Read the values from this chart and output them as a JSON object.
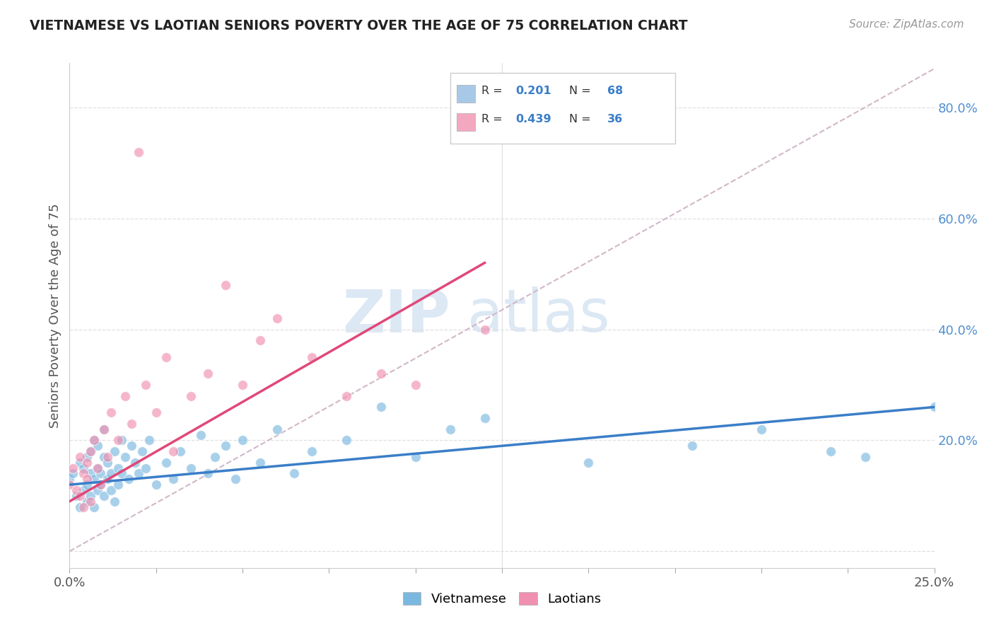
{
  "title": "VIETNAMESE VS LAOTIAN SENIORS POVERTY OVER THE AGE OF 75 CORRELATION CHART",
  "source_text": "Source: ZipAtlas.com",
  "ylabel": "Seniors Poverty Over the Age of 75",
  "xlim": [
    0.0,
    0.25
  ],
  "ylim": [
    -0.03,
    0.88
  ],
  "right_yticks": [
    0.0,
    0.2,
    0.4,
    0.6,
    0.8
  ],
  "right_yticklabels": [
    "",
    "20.0%",
    "40.0%",
    "60.0%",
    "80.0%"
  ],
  "legend_entries": [
    {
      "label": "Vietnamese",
      "color": "#a8c8e8",
      "R": "0.201",
      "N": "68"
    },
    {
      "label": "Laotians",
      "color": "#f4a8c0",
      "R": "0.439",
      "N": "36"
    }
  ],
  "viet_scatter_x": [
    0.0,
    0.001,
    0.002,
    0.003,
    0.003,
    0.004,
    0.004,
    0.005,
    0.005,
    0.005,
    0.006,
    0.006,
    0.006,
    0.007,
    0.007,
    0.007,
    0.008,
    0.008,
    0.008,
    0.009,
    0.009,
    0.01,
    0.01,
    0.01,
    0.011,
    0.011,
    0.012,
    0.012,
    0.013,
    0.013,
    0.014,
    0.014,
    0.015,
    0.015,
    0.016,
    0.017,
    0.018,
    0.019,
    0.02,
    0.021,
    0.022,
    0.023,
    0.025,
    0.028,
    0.03,
    0.032,
    0.035,
    0.038,
    0.04,
    0.042,
    0.045,
    0.048,
    0.05,
    0.055,
    0.06,
    0.065,
    0.07,
    0.08,
    0.09,
    0.1,
    0.11,
    0.12,
    0.15,
    0.18,
    0.2,
    0.22,
    0.23,
    0.25
  ],
  "viet_scatter_y": [
    0.13,
    0.14,
    0.1,
    0.16,
    0.08,
    0.15,
    0.11,
    0.17,
    0.12,
    0.09,
    0.18,
    0.14,
    0.1,
    0.2,
    0.13,
    0.08,
    0.15,
    0.11,
    0.19,
    0.14,
    0.12,
    0.17,
    0.1,
    0.22,
    0.13,
    0.16,
    0.14,
    0.11,
    0.18,
    0.09,
    0.15,
    0.12,
    0.2,
    0.14,
    0.17,
    0.13,
    0.19,
    0.16,
    0.14,
    0.18,
    0.15,
    0.2,
    0.12,
    0.16,
    0.13,
    0.18,
    0.15,
    0.21,
    0.14,
    0.17,
    0.19,
    0.13,
    0.2,
    0.16,
    0.22,
    0.14,
    0.18,
    0.2,
    0.26,
    0.17,
    0.22,
    0.24,
    0.16,
    0.19,
    0.22,
    0.18,
    0.17,
    0.26
  ],
  "lao_scatter_x": [
    0.0,
    0.001,
    0.002,
    0.003,
    0.003,
    0.004,
    0.004,
    0.005,
    0.005,
    0.006,
    0.006,
    0.007,
    0.008,
    0.009,
    0.01,
    0.011,
    0.012,
    0.014,
    0.016,
    0.018,
    0.02,
    0.022,
    0.025,
    0.028,
    0.03,
    0.035,
    0.04,
    0.045,
    0.05,
    0.055,
    0.06,
    0.07,
    0.08,
    0.09,
    0.1,
    0.12
  ],
  "lao_scatter_y": [
    0.12,
    0.15,
    0.11,
    0.17,
    0.1,
    0.14,
    0.08,
    0.16,
    0.13,
    0.18,
    0.09,
    0.2,
    0.15,
    0.12,
    0.22,
    0.17,
    0.25,
    0.2,
    0.28,
    0.23,
    0.72,
    0.3,
    0.25,
    0.35,
    0.18,
    0.28,
    0.32,
    0.48,
    0.3,
    0.38,
    0.42,
    0.35,
    0.28,
    0.32,
    0.3,
    0.4
  ],
  "viet_trend_x": [
    0.0,
    0.25
  ],
  "viet_trend_y": [
    0.12,
    0.26
  ],
  "lao_trend_x": [
    0.0,
    0.12
  ],
  "lao_trend_y": [
    0.09,
    0.52
  ],
  "diag_line_x": [
    0.0,
    0.25
  ],
  "diag_line_y": [
    0.0,
    0.87
  ],
  "watermark_zip": "ZIP",
  "watermark_atlas": "atlas",
  "title_color": "#222222",
  "source_color": "#999999",
  "viet_scatter_color": "#7ab8e0",
  "lao_scatter_color": "#f090b0",
  "viet_line_color": "#3a7ec8",
  "lao_line_color": "#e04878",
  "diag_color": "#d0b8c8",
  "grid_color": "#e0e0e0",
  "right_tick_color": "#5090d0",
  "background_color": "#ffffff"
}
